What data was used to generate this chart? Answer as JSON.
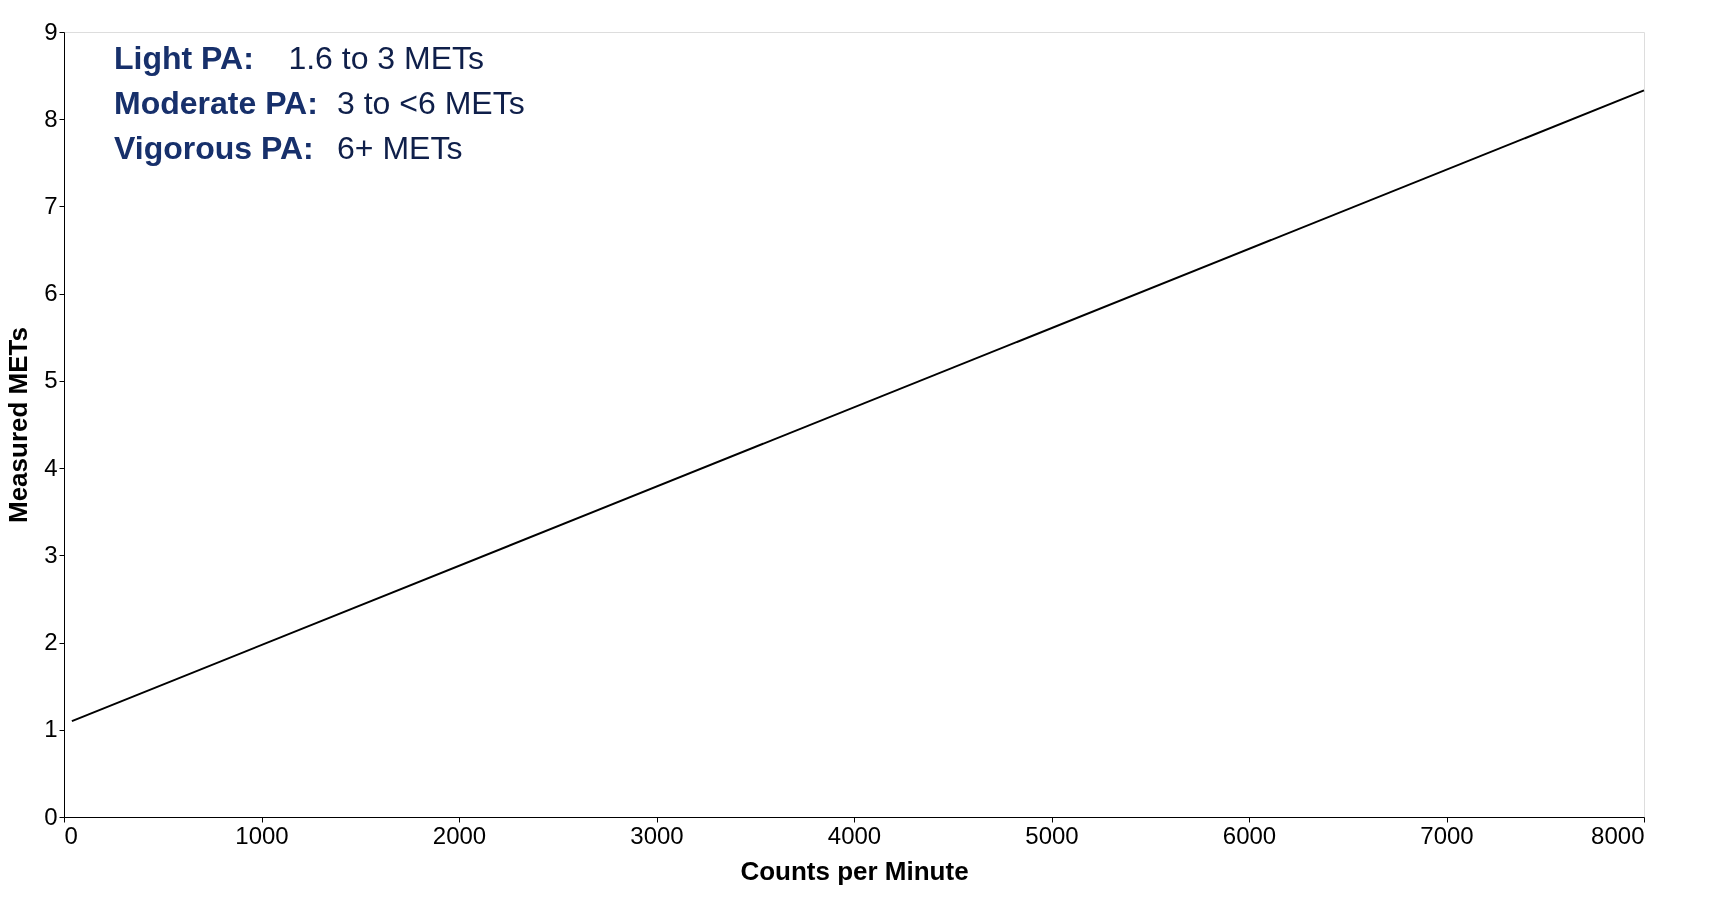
{
  "chart_data": {
    "type": "line",
    "xlabel": "Counts per Minute",
    "ylabel": "Measured METs",
    "x": [
      40,
      8000
    ],
    "series": [
      {
        "color": "#000000",
        "values": [
          1.1,
          8.33
        ]
      }
    ],
    "xlim": [
      0,
      8000
    ],
    "xticks": [
      0,
      1000,
      2000,
      3000,
      4000,
      5000,
      6000,
      7000,
      8000
    ],
    "ylim": [
      0,
      9
    ],
    "yticks": [
      0,
      1,
      2,
      3,
      4,
      5,
      6,
      7,
      8,
      9
    ],
    "grid": false,
    "marker": "none",
    "line_style": "solid",
    "annotations": [
      "Light  PA: 1.6 to  3 METs",
      "Moderate PA: 3 to <6 METs",
      "Vigorous PA: 6+ METs"
    ]
  }
}
